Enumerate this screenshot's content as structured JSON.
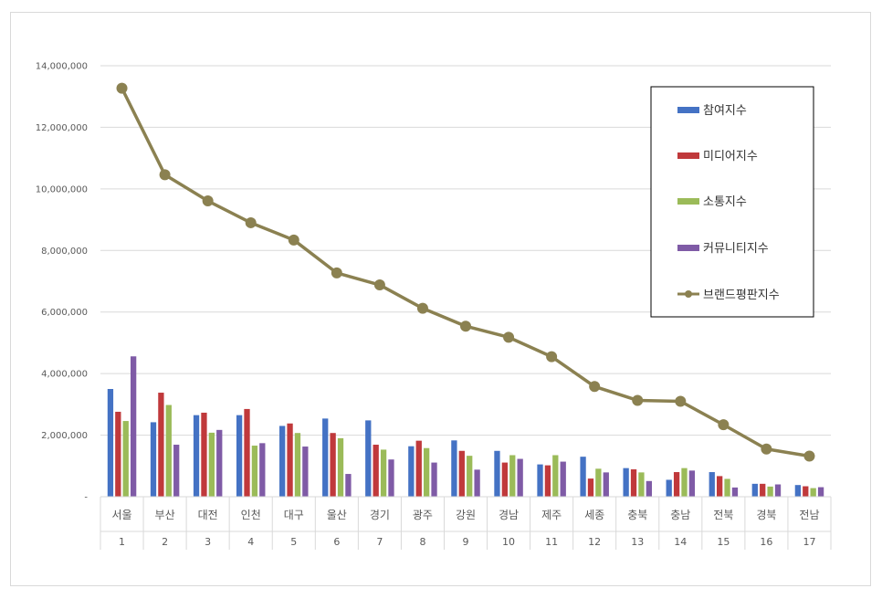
{
  "chart_data": {
    "type": "bar",
    "categories": [
      "서울",
      "부산",
      "대전",
      "인천",
      "대구",
      "울산",
      "경기",
      "광주",
      "강원",
      "경남",
      "제주",
      "세종",
      "충북",
      "충남",
      "전북",
      "경북",
      "전남"
    ],
    "ranks": [
      "1",
      "2",
      "3",
      "4",
      "5",
      "6",
      "7",
      "8",
      "9",
      "10",
      "11",
      "12",
      "13",
      "14",
      "15",
      "16",
      "17"
    ],
    "ylim": [
      0,
      14000000
    ],
    "yticks": [
      {
        "value": 0,
        "label": "-"
      },
      {
        "value": 2000000,
        "label": "2,000,000"
      },
      {
        "value": 4000000,
        "label": "4,000,000"
      },
      {
        "value": 6000000,
        "label": "6,000,000"
      },
      {
        "value": 8000000,
        "label": "8,000,000"
      },
      {
        "value": 10000000,
        "label": "10,000,000"
      },
      {
        "value": 12000000,
        "label": "12,000,000"
      },
      {
        "value": 14000000,
        "label": "14,000,000"
      }
    ],
    "grid": true,
    "legend_position": "right",
    "series": [
      {
        "name": "참여지수",
        "kind": "bar",
        "color": "#4472c4",
        "values": [
          3500000,
          2420000,
          2650000,
          2650000,
          2300000,
          2540000,
          2480000,
          1640000,
          1830000,
          1490000,
          1050000,
          1300000,
          930000,
          550000,
          800000,
          420000,
          380000
        ]
      },
      {
        "name": "미디어지수",
        "kind": "bar",
        "color": "#c0393b",
        "values": [
          2760000,
          3380000,
          2730000,
          2850000,
          2380000,
          2070000,
          1690000,
          1820000,
          1490000,
          1110000,
          1020000,
          590000,
          890000,
          800000,
          670000,
          420000,
          340000
        ]
      },
      {
        "name": "소통지수",
        "kind": "bar",
        "color": "#9bbb59",
        "values": [
          2460000,
          2980000,
          2080000,
          1660000,
          2070000,
          1900000,
          1530000,
          1580000,
          1330000,
          1350000,
          1350000,
          910000,
          790000,
          930000,
          580000,
          330000,
          280000
        ]
      },
      {
        "name": "커뮤니티지수",
        "kind": "bar",
        "color": "#7f5ba6",
        "values": [
          4560000,
          1690000,
          2170000,
          1740000,
          1630000,
          740000,
          1210000,
          1110000,
          880000,
          1230000,
          1140000,
          790000,
          510000,
          850000,
          300000,
          400000,
          310000
        ]
      },
      {
        "name": "브랜드평판지수",
        "kind": "line",
        "color": "#8b8151",
        "values": [
          13270000,
          10460000,
          9610000,
          8900000,
          8340000,
          7270000,
          6880000,
          6120000,
          5540000,
          5180000,
          4550000,
          3580000,
          3130000,
          3100000,
          2340000,
          1550000,
          1320000
        ]
      }
    ]
  }
}
